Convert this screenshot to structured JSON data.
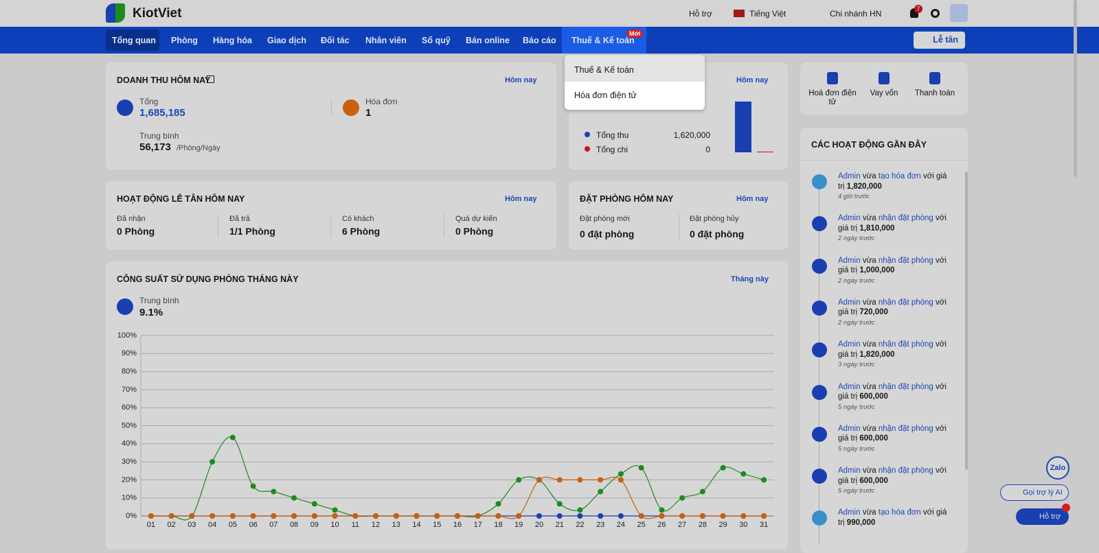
{
  "header": {
    "logo": "KiotViet",
    "support": "Hỗ trợ",
    "language": "Tiếng Việt",
    "branch": "Chi nhánh HN",
    "notification_count": "7"
  },
  "nav": {
    "items": [
      "Tổng quan",
      "Phòng",
      "Hàng hóa",
      "Giao dịch",
      "Đối tác",
      "Nhân viên",
      "Sổ quỹ",
      "Bán online",
      "Báo cáo",
      "Thuế & Kế toán"
    ],
    "badge": "Mới",
    "reception": "Lễ tân"
  },
  "dropdown": {
    "items": [
      "Thuế & Kế toán",
      "Hóa đơn điện tử"
    ]
  },
  "revenue": {
    "title": "DOANH THU HÔM NAY",
    "period": "Hôm nay",
    "total_label": "Tổng",
    "total": "1,685,185",
    "invoice_label": "Hóa đơn",
    "invoices": "1",
    "average_label": "Trung bình",
    "average": "56,173",
    "average_unit": "/Phòng/Ngày"
  },
  "cashflow": {
    "period": "Hôm nay"
  },
  "reception": {
    "title": "HOẠT ĐỘNG LỄ TÂN HÔM NAY",
    "period": "Hôm nay",
    "stats": [
      {
        "label": "Đã nhận",
        "value": "0 Phòng"
      },
      {
        "label": "Đã trả",
        "value": "1/1 Phòng"
      },
      {
        "label": "Có khách",
        "value": "6 Phòng"
      },
      {
        "label": "Quá dự kiến",
        "value": "0 Phòng"
      }
    ]
  },
  "booking": {
    "title": "ĐẶT PHÒNG HÔM NAY",
    "period": "Hôm nay",
    "stats": [
      {
        "label": "Đặt phòng mới",
        "value": "0 đặt phòng"
      },
      {
        "label": "Đặt phòng hủy",
        "value": "0 đặt phòng"
      }
    ]
  },
  "occupancy": {
    "period": "Tháng này",
    "average_label": "Trung bình",
    "average": "9.1%"
  },
  "quick_actions": [
    "Hoá đơn điện tử",
    "Vay vốn",
    "Thanh toán"
  ],
  "activity": {
    "title": "CÁC HOẠT ĐỘNG GẦN ĐÂY",
    "items": [
      {
        "user": "Admin",
        "verb": "vừa",
        "action": "tạo hóa đơn",
        "suffix": "với giá trị",
        "amount": "1,820,000",
        "time": "4 giờ trước"
      },
      {
        "user": "Admin",
        "verb": "vừa",
        "action": "nhận đặt phòng",
        "suffix": "với giá trị",
        "amount": "1,810,000",
        "time": "2 ngày trước"
      },
      {
        "user": "Admin",
        "verb": "vừa",
        "action": "nhận đặt phòng",
        "suffix": "với giá trị",
        "amount": "1,000,000",
        "time": "2 ngày trước"
      },
      {
        "user": "Admin",
        "verb": "vừa",
        "action": "nhận đặt phòng",
        "suffix": "với giá trị",
        "amount": "720,000",
        "time": "2 ngày trước"
      },
      {
        "user": "Admin",
        "verb": "vừa",
        "action": "nhận đặt phòng",
        "suffix": "với giá trị",
        "amount": "1,820,000",
        "time": "3 ngày trước"
      },
      {
        "user": "Admin",
        "verb": "vừa",
        "action": "nhận đặt phòng",
        "suffix": "với giá trị",
        "amount": "600,000",
        "time": "5 ngày trước"
      },
      {
        "user": "Admin",
        "verb": "vừa",
        "action": "nhận đặt phòng",
        "suffix": "với giá trị",
        "amount": "600,000",
        "time": "5 ngày trước"
      },
      {
        "user": "Admin",
        "verb": "vừa",
        "action": "nhận đặt phòng",
        "suffix": "với giá trị",
        "amount": "600,000",
        "time": "5 ngày trước"
      },
      {
        "user": "Admin",
        "verb": "vừa",
        "action": "tạo hóa đơn",
        "suffix": "với giá trị",
        "amount": "990,000"
      }
    ]
  },
  "floating": {
    "zalo": "Zalo",
    "ai": "Gọi trợ lý AI",
    "help": "Hỗ trợ"
  },
  "chart_data": [
    {
      "type": "bar",
      "categories": [
        "Tổng thu",
        "Tổng chi"
      ],
      "values": [
        1620000,
        0
      ],
      "value_labels": [
        "1,620,000",
        "0"
      ],
      "colors": [
        "#1a3fb0",
        "#c8161d"
      ]
    },
    {
      "type": "line",
      "title": "CÔNG SUẤT SỬ DỤNG PHÒNG THÁNG NÀY",
      "categories": [
        "01",
        "02",
        "03",
        "04",
        "05",
        "06",
        "07",
        "08",
        "09",
        "10",
        "11",
        "12",
        "13",
        "14",
        "15",
        "16",
        "17",
        "18",
        "19",
        "20",
        "21",
        "22",
        "23",
        "24",
        "25",
        "26",
        "27",
        "28",
        "29",
        "30",
        "31"
      ],
      "series": [
        {
          "color": "#1e8a1e",
          "values": [
            0,
            0,
            0,
            30,
            43.5,
            16.5,
            13.5,
            10,
            6.7,
            3.3,
            0,
            0,
            0,
            0,
            0,
            0,
            0,
            6.7,
            20,
            20,
            6.7,
            3.3,
            13.5,
            23.3,
            26.7,
            3.3,
            10,
            13.5,
            26.7,
            23.3,
            20
          ]
        },
        {
          "color": "#1a3fb0",
          "values": [
            0,
            0,
            0,
            0,
            0,
            0,
            0,
            0,
            0,
            0,
            0,
            0,
            0,
            0,
            0,
            0,
            0,
            0,
            0,
            0,
            0,
            0,
            0,
            0,
            0,
            0,
            0,
            0,
            0,
            0,
            0
          ]
        },
        {
          "color": "#c8600e",
          "values": [
            0,
            0,
            0,
            0,
            0,
            0,
            0,
            0,
            0,
            0,
            0,
            0,
            0,
            0,
            0,
            0,
            0,
            0,
            0,
            20,
            20,
            20,
            20,
            20,
            0,
            0,
            0,
            0,
            0,
            0,
            0
          ]
        }
      ],
      "ylim": [
        0,
        100
      ],
      "yticks": [
        {
          "value": 0,
          "label": "0%"
        },
        {
          "value": 10,
          "label": "10%"
        },
        {
          "value": 20,
          "label": "20%"
        },
        {
          "value": 30,
          "label": "30%"
        },
        {
          "value": 40,
          "label": "40%"
        },
        {
          "value": 50,
          "label": "50%"
        },
        {
          "value": 60,
          "label": "60%"
        },
        {
          "value": 70,
          "label": "70%"
        },
        {
          "value": 80,
          "label": "80%"
        },
        {
          "value": 90,
          "label": "90%"
        },
        {
          "value": 100,
          "label": "100%"
        }
      ],
      "grid": true
    }
  ]
}
